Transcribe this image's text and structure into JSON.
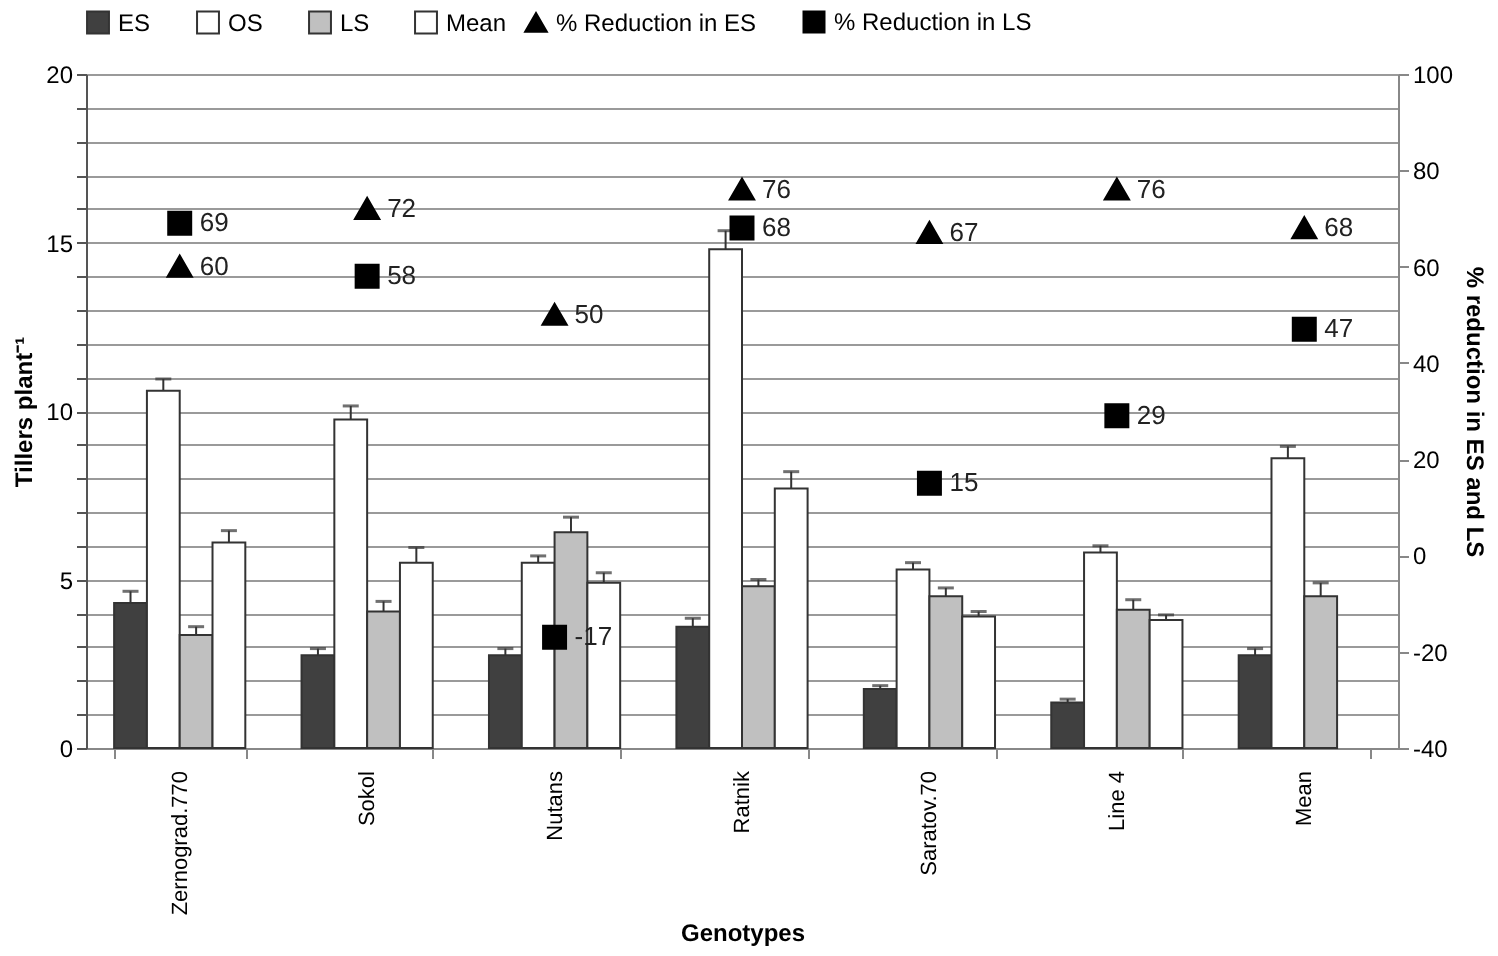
{
  "chart_data": {
    "type": "bar",
    "categories": [
      "Zernograd.770",
      "Sokol",
      "Nutans",
      "Ratnik",
      "Saratov.70",
      "Line 4",
      "Mean"
    ],
    "xlabel": "Genotypes",
    "ylabel": "Tillers plant⁻¹",
    "y2label": "% reduction in ES and LS",
    "series": [
      {
        "name": "ES",
        "color": "#404040",
        "values": [
          4.3,
          2.75,
          2.75,
          3.6,
          1.75,
          1.35,
          2.75
        ],
        "errors": [
          0.35,
          0.2,
          0.2,
          0.25,
          0.1,
          0.1,
          0.2
        ]
      },
      {
        "name": "OS",
        "color": "#ffffff",
        "values": [
          10.6,
          9.75,
          5.5,
          14.8,
          5.3,
          5.8,
          8.6
        ],
        "errors": [
          0.35,
          0.4,
          0.2,
          0.55,
          0.2,
          0.2,
          0.35
        ]
      },
      {
        "name": "LS",
        "color": "#c0c0c0",
        "values": [
          3.35,
          4.05,
          6.4,
          4.8,
          4.5,
          4.1,
          4.5
        ],
        "errors": [
          0.25,
          0.3,
          0.45,
          0.2,
          0.25,
          0.3,
          0.4
        ]
      },
      {
        "name": "Mean",
        "color": "#ffffff",
        "values": [
          6.1,
          5.5,
          4.9,
          7.7,
          3.9,
          3.8,
          null
        ],
        "errors": [
          0.35,
          0.45,
          0.3,
          0.5,
          0.15,
          0.15,
          null
        ]
      },
      {
        "name": "% Reduction in ES",
        "type": "scatter",
        "axis": "y2",
        "marker": "triangle",
        "color": "#000000",
        "values": [
          60,
          72,
          50,
          76,
          67,
          76,
          68
        ],
        "value_labels": [
          "60",
          "72",
          "50",
          "76",
          "67",
          "76",
          "68"
        ]
      },
      {
        "name": "% Reduction in LS",
        "type": "scatter",
        "axis": "y2",
        "marker": "square",
        "color": "#000000",
        "values": [
          69,
          58,
          -17,
          68,
          15,
          29,
          47
        ],
        "value_labels": [
          "69",
          "58",
          "-17",
          "68",
          "15",
          "29",
          "47"
        ]
      }
    ],
    "ylim": [
      0,
      20
    ],
    "yticks": [
      0,
      {
        "value": 1,
        "label": null
      },
      {
        "value": 2,
        "label": null
      },
      {
        "value": 3,
        "label": null
      },
      {
        "value": 4,
        "label": null
      },
      5,
      {
        "value": 6,
        "label": null
      },
      {
        "value": 7,
        "label": null
      },
      {
        "value": 8,
        "label": null
      },
      {
        "value": 9,
        "label": null
      },
      10,
      {
        "value": 11,
        "label": null
      },
      {
        "value": 12,
        "label": null
      },
      {
        "value": 13,
        "label": null
      },
      {
        "value": 14,
        "label": null
      },
      15,
      {
        "value": 16,
        "label": null
      },
      {
        "value": 17,
        "label": null
      },
      {
        "value": 18,
        "label": null
      },
      {
        "value": 19,
        "label": null
      },
      20
    ],
    "y2lim": [
      -40,
      100
    ],
    "y2ticks": [
      -40,
      -20,
      0,
      20,
      40,
      60,
      80,
      100
    ],
    "grid": "y",
    "legend": "top"
  }
}
